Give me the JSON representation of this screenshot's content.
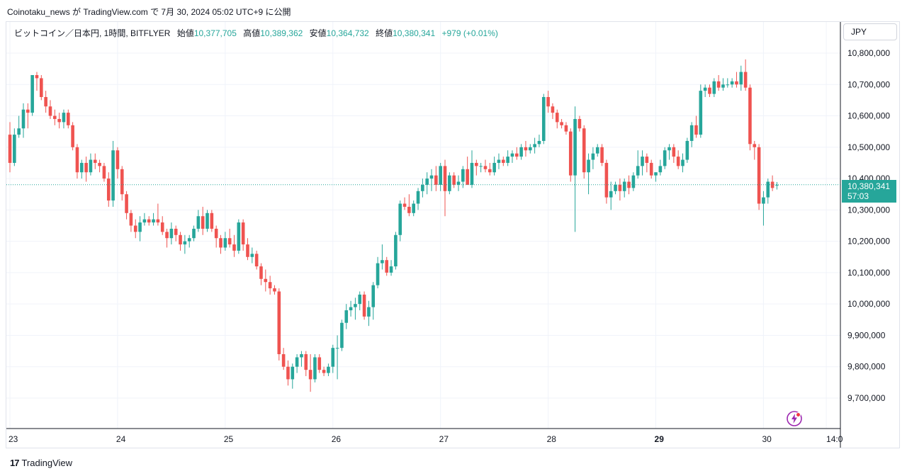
{
  "attribution": "Coinotaku_news が TradingView.com で 7月 30, 2024 05:02 UTC+9 に公開",
  "legend": {
    "symbol": "ビットコイン／日本円, 1時間, BITFLYER",
    "open_label": "始値",
    "open": "10,377,705",
    "high_label": "高値",
    "high": "10,389,362",
    "low_label": "安値",
    "low": "10,364,732",
    "close_label": "終値",
    "close": "10,380,341",
    "change": "+979 (+0.01%)"
  },
  "currency": "JPY",
  "price_tag": {
    "price": "10,380,341",
    "countdown": "57:03"
  },
  "branding": {
    "logo_mark": "17",
    "name": "TradingView"
  },
  "colors": {
    "up": "#26a69a",
    "down": "#ef5350",
    "grid": "#f0f3fa",
    "last_price_line": "#26a69a"
  },
  "icons": {
    "alert": "lightning-alert-icon"
  },
  "chart_data": {
    "type": "candlestick",
    "title": "ビットコイン／日本円, 1時間, BITFLYER",
    "ylim": [
      9610000,
      10820000
    ],
    "y_ticks": [
      {
        "value": 10800000,
        "label": "10,800,000"
      },
      {
        "value": 10700000,
        "label": "10,700,000"
      },
      {
        "value": 10600000,
        "label": "10,600,000"
      },
      {
        "value": 10500000,
        "label": "10,500,000"
      },
      {
        "value": 10400000,
        "label": "10,400,000"
      },
      {
        "value": 10300000,
        "label": "10,300,000"
      },
      {
        "value": 10200000,
        "label": "10,200,000"
      },
      {
        "value": 10100000,
        "label": "10,100,000"
      },
      {
        "value": 10000000,
        "label": "10,000,000"
      },
      {
        "value": 9900000,
        "label": "9,900,000"
      },
      {
        "value": 9800000,
        "label": "9,800,000"
      },
      {
        "value": 9700000,
        "label": "9,700,000"
      }
    ],
    "x_ticks": [
      {
        "label": "23",
        "bar": 0,
        "bold": false
      },
      {
        "label": "24",
        "bar": 24,
        "bold": false
      },
      {
        "label": "25",
        "bar": 48,
        "bold": false
      },
      {
        "label": "26",
        "bar": 72,
        "bold": false
      },
      {
        "label": "27",
        "bar": 96,
        "bold": false
      },
      {
        "label": "28",
        "bar": 120,
        "bold": false
      },
      {
        "label": "29",
        "bar": 144,
        "bold": true
      },
      {
        "label": "30",
        "bar": 168,
        "bold": false
      },
      {
        "label": "14:0",
        "bar": 182,
        "bold": false
      }
    ],
    "last_price": 10380341,
    "ohlc": [
      [
        10540000,
        10580000,
        10420000,
        10450000
      ],
      [
        10450000,
        10560000,
        10440000,
        10540000
      ],
      [
        10540000,
        10600000,
        10530000,
        10560000
      ],
      [
        10560000,
        10640000,
        10530000,
        10620000
      ],
      [
        10620000,
        10640000,
        10560000,
        10610000
      ],
      [
        10610000,
        10720000,
        10600000,
        10730000
      ],
      [
        10730000,
        10740000,
        10680000,
        10720000
      ],
      [
        10720000,
        10730000,
        10650000,
        10660000
      ],
      [
        10660000,
        10680000,
        10610000,
        10630000
      ],
      [
        10630000,
        10650000,
        10590000,
        10600000
      ],
      [
        10600000,
        10620000,
        10570000,
        10590000
      ],
      [
        10590000,
        10610000,
        10560000,
        10580000
      ],
      [
        10580000,
        10620000,
        10560000,
        10610000
      ],
      [
        10610000,
        10620000,
        10560000,
        10570000
      ],
      [
        10570000,
        10580000,
        10490000,
        10500000
      ],
      [
        10500000,
        10510000,
        10400000,
        10420000
      ],
      [
        10420000,
        10460000,
        10400000,
        10450000
      ],
      [
        10450000,
        10470000,
        10390000,
        10420000
      ],
      [
        10420000,
        10480000,
        10410000,
        10460000
      ],
      [
        10460000,
        10480000,
        10430000,
        10450000
      ],
      [
        10450000,
        10460000,
        10420000,
        10440000
      ],
      [
        10440000,
        10450000,
        10390000,
        10400000
      ],
      [
        10400000,
        10420000,
        10310000,
        10330000
      ],
      [
        10330000,
        10520000,
        10310000,
        10490000
      ],
      [
        10490000,
        10500000,
        10400000,
        10430000
      ],
      [
        10430000,
        10440000,
        10330000,
        10350000
      ],
      [
        10350000,
        10360000,
        10270000,
        10290000
      ],
      [
        10290000,
        10300000,
        10230000,
        10250000
      ],
      [
        10250000,
        10270000,
        10210000,
        10230000
      ],
      [
        10230000,
        10280000,
        10200000,
        10260000
      ],
      [
        10260000,
        10290000,
        10250000,
        10270000
      ],
      [
        10270000,
        10280000,
        10250000,
        10260000
      ],
      [
        10260000,
        10290000,
        10250000,
        10270000
      ],
      [
        10270000,
        10320000,
        10250000,
        10260000
      ],
      [
        10260000,
        10280000,
        10220000,
        10230000
      ],
      [
        10230000,
        10240000,
        10180000,
        10210000
      ],
      [
        10210000,
        10260000,
        10190000,
        10240000
      ],
      [
        10240000,
        10250000,
        10200000,
        10220000
      ],
      [
        10220000,
        10230000,
        10170000,
        10190000
      ],
      [
        10190000,
        10220000,
        10160000,
        10200000
      ],
      [
        10200000,
        10220000,
        10180000,
        10210000
      ],
      [
        10210000,
        10250000,
        10200000,
        10240000
      ],
      [
        10240000,
        10300000,
        10230000,
        10280000
      ],
      [
        10280000,
        10310000,
        10220000,
        10240000
      ],
      [
        10240000,
        10300000,
        10230000,
        10290000
      ],
      [
        10290000,
        10300000,
        10230000,
        10240000
      ],
      [
        10240000,
        10250000,
        10180000,
        10210000
      ],
      [
        10210000,
        10220000,
        10160000,
        10180000
      ],
      [
        10180000,
        10230000,
        10170000,
        10210000
      ],
      [
        10210000,
        10240000,
        10180000,
        10190000
      ],
      [
        10190000,
        10220000,
        10150000,
        10170000
      ],
      [
        10170000,
        10270000,
        10160000,
        10260000
      ],
      [
        10260000,
        10270000,
        10170000,
        10190000
      ],
      [
        10190000,
        10210000,
        10140000,
        10150000
      ],
      [
        10150000,
        10180000,
        10130000,
        10160000
      ],
      [
        10160000,
        10170000,
        10110000,
        10120000
      ],
      [
        10120000,
        10130000,
        10060000,
        10080000
      ],
      [
        10080000,
        10110000,
        10040000,
        10070000
      ],
      [
        10070000,
        10090000,
        10030000,
        10050000
      ],
      [
        10050000,
        10060000,
        10030000,
        10040000
      ],
      [
        10040000,
        10050000,
        9820000,
        9840000
      ],
      [
        9840000,
        9860000,
        9790000,
        9800000
      ],
      [
        9800000,
        9820000,
        9740000,
        9760000
      ],
      [
        9760000,
        9810000,
        9730000,
        9800000
      ],
      [
        9800000,
        9840000,
        9780000,
        9830000
      ],
      [
        9830000,
        9850000,
        9800000,
        9840000
      ],
      [
        9840000,
        9850000,
        9770000,
        9790000
      ],
      [
        9790000,
        9840000,
        9720000,
        9760000
      ],
      [
        9760000,
        9840000,
        9750000,
        9830000
      ],
      [
        9830000,
        9840000,
        9780000,
        9790000
      ],
      [
        9790000,
        9800000,
        9770000,
        9780000
      ],
      [
        9780000,
        9810000,
        9770000,
        9800000
      ],
      [
        9800000,
        9870000,
        9780000,
        9860000
      ],
      [
        9860000,
        9900000,
        9760000,
        9860000
      ],
      [
        9860000,
        9950000,
        9850000,
        9940000
      ],
      [
        9940000,
        10000000,
        9920000,
        9980000
      ],
      [
        9980000,
        10010000,
        9960000,
        9990000
      ],
      [
        9990000,
        10020000,
        9950000,
        10000000
      ],
      [
        10000000,
        10040000,
        9980000,
        10030000
      ],
      [
        10030000,
        10040000,
        9950000,
        9960000
      ],
      [
        9960000,
        10010000,
        9930000,
        9990000
      ],
      [
        9990000,
        10070000,
        9950000,
        10060000
      ],
      [
        10060000,
        10150000,
        10050000,
        10130000
      ],
      [
        10130000,
        10190000,
        10110000,
        10140000
      ],
      [
        10140000,
        10150000,
        10090000,
        10100000
      ],
      [
        10100000,
        10140000,
        10090000,
        10120000
      ],
      [
        10120000,
        10230000,
        10110000,
        10220000
      ],
      [
        10220000,
        10330000,
        10200000,
        10320000
      ],
      [
        10320000,
        10340000,
        10300000,
        10310000
      ],
      [
        10310000,
        10350000,
        10280000,
        10290000
      ],
      [
        10290000,
        10330000,
        10280000,
        10320000
      ],
      [
        10320000,
        10370000,
        10300000,
        10360000
      ],
      [
        10360000,
        10400000,
        10340000,
        10380000
      ],
      [
        10380000,
        10420000,
        10350000,
        10400000
      ],
      [
        10400000,
        10430000,
        10360000,
        10410000
      ],
      [
        10410000,
        10440000,
        10360000,
        10380000
      ],
      [
        10380000,
        10450000,
        10360000,
        10440000
      ],
      [
        10440000,
        10460000,
        10280000,
        10360000
      ],
      [
        10360000,
        10420000,
        10350000,
        10410000
      ],
      [
        10410000,
        10420000,
        10370000,
        10380000
      ],
      [
        10380000,
        10410000,
        10360000,
        10390000
      ],
      [
        10390000,
        10440000,
        10370000,
        10430000
      ],
      [
        10430000,
        10470000,
        10380000,
        10380000
      ],
      [
        10380000,
        10490000,
        10370000,
        10450000
      ],
      [
        10450000,
        10460000,
        10410000,
        10440000
      ],
      [
        10440000,
        10450000,
        10420000,
        10440000
      ],
      [
        10440000,
        10460000,
        10420000,
        10430000
      ],
      [
        10430000,
        10450000,
        10410000,
        10420000
      ],
      [
        10420000,
        10470000,
        10410000,
        10450000
      ],
      [
        10450000,
        10480000,
        10430000,
        10460000
      ],
      [
        10460000,
        10470000,
        10440000,
        10450000
      ],
      [
        10450000,
        10490000,
        10440000,
        10470000
      ],
      [
        10470000,
        10490000,
        10450000,
        10480000
      ],
      [
        10480000,
        10500000,
        10460000,
        10470000
      ],
      [
        10470000,
        10510000,
        10460000,
        10500000
      ],
      [
        10500000,
        10520000,
        10470000,
        10490000
      ],
      [
        10490000,
        10510000,
        10480000,
        10500000
      ],
      [
        10500000,
        10530000,
        10480000,
        10510000
      ],
      [
        10510000,
        10540000,
        10500000,
        10520000
      ],
      [
        10520000,
        10670000,
        10510000,
        10660000
      ],
      [
        10660000,
        10680000,
        10610000,
        10630000
      ],
      [
        10630000,
        10640000,
        10590000,
        10610000
      ],
      [
        10610000,
        10620000,
        10560000,
        10580000
      ],
      [
        10580000,
        10590000,
        10560000,
        10570000
      ],
      [
        10570000,
        10580000,
        10540000,
        10550000
      ],
      [
        10550000,
        10560000,
        10390000,
        10410000
      ],
      [
        10410000,
        10630000,
        10230000,
        10590000
      ],
      [
        10590000,
        10600000,
        10550000,
        10560000
      ],
      [
        10560000,
        10570000,
        10400000,
        10420000
      ],
      [
        10420000,
        10480000,
        10350000,
        10460000
      ],
      [
        10460000,
        10500000,
        10430000,
        10480000
      ],
      [
        10480000,
        10510000,
        10470000,
        10500000
      ],
      [
        10500000,
        10510000,
        10440000,
        10450000
      ],
      [
        10450000,
        10460000,
        10320000,
        10340000
      ],
      [
        10340000,
        10390000,
        10300000,
        10360000
      ],
      [
        10360000,
        10390000,
        10350000,
        10380000
      ],
      [
        10380000,
        10400000,
        10330000,
        10360000
      ],
      [
        10360000,
        10400000,
        10340000,
        10390000
      ],
      [
        10390000,
        10410000,
        10350000,
        10370000
      ],
      [
        10370000,
        10420000,
        10360000,
        10410000
      ],
      [
        10410000,
        10490000,
        10400000,
        10440000
      ],
      [
        10440000,
        10490000,
        10410000,
        10470000
      ],
      [
        10470000,
        10480000,
        10420000,
        10450000
      ],
      [
        10450000,
        10460000,
        10400000,
        10410000
      ],
      [
        10410000,
        10420000,
        10390000,
        10420000
      ],
      [
        10420000,
        10460000,
        10410000,
        10440000
      ],
      [
        10440000,
        10500000,
        10430000,
        10490000
      ],
      [
        10490000,
        10510000,
        10460000,
        10500000
      ],
      [
        10500000,
        10510000,
        10450000,
        10470000
      ],
      [
        10470000,
        10490000,
        10430000,
        10440000
      ],
      [
        10440000,
        10480000,
        10420000,
        10460000
      ],
      [
        10460000,
        10530000,
        10450000,
        10520000
      ],
      [
        10520000,
        10580000,
        10500000,
        10570000
      ],
      [
        10570000,
        10600000,
        10530000,
        10540000
      ],
      [
        10540000,
        10700000,
        10530000,
        10680000
      ],
      [
        10680000,
        10700000,
        10660000,
        10690000
      ],
      [
        10690000,
        10700000,
        10660000,
        10670000
      ],
      [
        10670000,
        10720000,
        10660000,
        10710000
      ],
      [
        10710000,
        10730000,
        10680000,
        10690000
      ],
      [
        10690000,
        10720000,
        10680000,
        10700000
      ],
      [
        10700000,
        10720000,
        10690000,
        10700000
      ],
      [
        10700000,
        10720000,
        10690000,
        10710000
      ],
      [
        10710000,
        10740000,
        10690000,
        10700000
      ],
      [
        10700000,
        10760000,
        10680000,
        10740000
      ],
      [
        10740000,
        10780000,
        10680000,
        10690000
      ],
      [
        10690000,
        10700000,
        10490000,
        10510000
      ],
      [
        10510000,
        10520000,
        10460000,
        10500000
      ],
      [
        10500000,
        10510000,
        10300000,
        10320000
      ],
      [
        10320000,
        10360000,
        10250000,
        10340000
      ],
      [
        10340000,
        10400000,
        10320000,
        10390000
      ],
      [
        10390000,
        10410000,
        10360000,
        10370000
      ],
      [
        10378000,
        10389000,
        10365000,
        10380000
      ]
    ]
  }
}
